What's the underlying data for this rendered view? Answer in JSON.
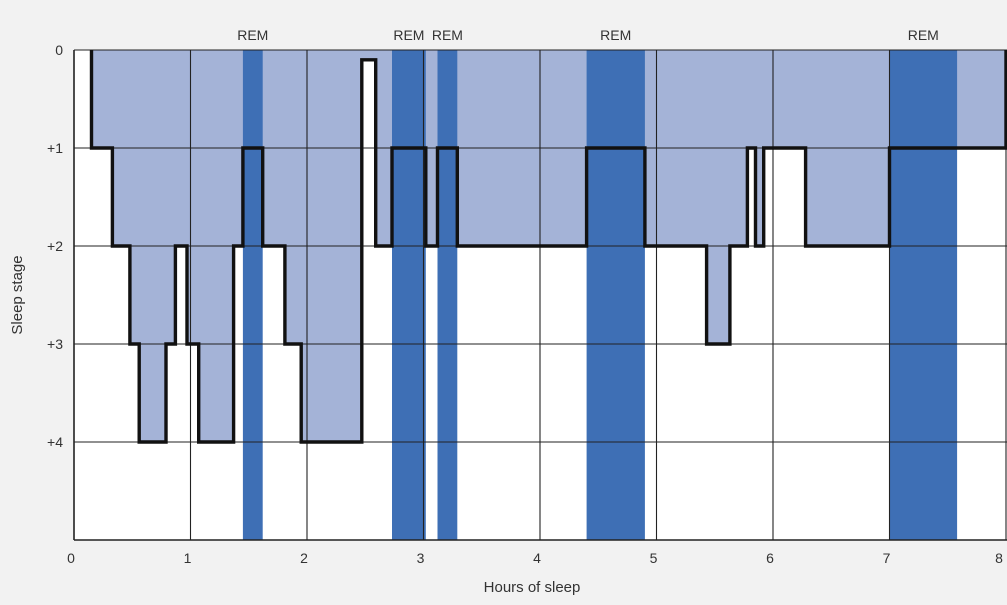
{
  "chart_data": {
    "type": "area",
    "xlabel": "Hours of sleep",
    "ylabel": "Sleep stage",
    "xlim": [
      0,
      8
    ],
    "ylim": [
      0,
      5
    ],
    "y_inverted": true,
    "grid": true,
    "x_ticks": [
      0,
      1,
      2,
      3,
      4,
      5,
      6,
      7,
      8
    ],
    "x_tick_labels": [
      "0",
      "1",
      "2",
      "3",
      "4",
      "5",
      "6",
      "7",
      "8"
    ],
    "y_ticks": [
      0,
      1,
      2,
      3,
      4
    ],
    "y_tick_labels": [
      "0",
      "+1",
      "+2",
      "+3",
      "+4"
    ],
    "rem_periods": [
      {
        "label": "REM",
        "start": 1.45,
        "end": 1.62
      },
      {
        "label": "REM",
        "start": 2.73,
        "end": 3.02
      },
      {
        "label": "REM",
        "start": 3.12,
        "end": 3.29
      },
      {
        "label": "REM",
        "start": 4.4,
        "end": 4.9
      },
      {
        "label": "REM",
        "start": 7.0,
        "end": 7.58
      }
    ],
    "hypnogram": {
      "x": [
        0.15,
        0.15,
        0.33,
        0.33,
        0.48,
        0.48,
        0.56,
        0.56,
        0.79,
        0.79,
        0.87,
        0.87,
        0.97,
        0.97,
        1.07,
        1.07,
        1.37,
        1.37,
        1.45,
        1.45,
        1.62,
        1.62,
        1.81,
        1.81,
        1.95,
        1.95,
        2.47,
        2.47,
        2.59,
        2.59,
        2.73,
        2.73,
        3.02,
        3.02,
        3.12,
        3.12,
        3.29,
        3.29,
        4.4,
        4.4,
        4.9,
        4.9,
        5.43,
        5.43,
        5.63,
        5.63,
        5.78,
        5.78,
        5.85,
        5.85,
        5.92,
        5.92,
        6.28,
        6.28,
        7.0,
        7.0,
        8.0,
        8.0
      ],
      "y": [
        0,
        1,
        1,
        2,
        2,
        3,
        3,
        4,
        4,
        3,
        3,
        2,
        2,
        3,
        3,
        4,
        4,
        2,
        2,
        1,
        1,
        2,
        2,
        3,
        3,
        4,
        4,
        0.1,
        0.1,
        2,
        2,
        1,
        1,
        2,
        2,
        1,
        1,
        2,
        2,
        1,
        1,
        2,
        2,
        3,
        3,
        2,
        2,
        1,
        1,
        2,
        2,
        1,
        1,
        2,
        2,
        1,
        1,
        0
      ]
    },
    "colors": {
      "fill": "#a4b3d7",
      "rem": "#3e6fb5",
      "line": "#111111",
      "grid": "#222222",
      "background": "#ffffff"
    }
  }
}
